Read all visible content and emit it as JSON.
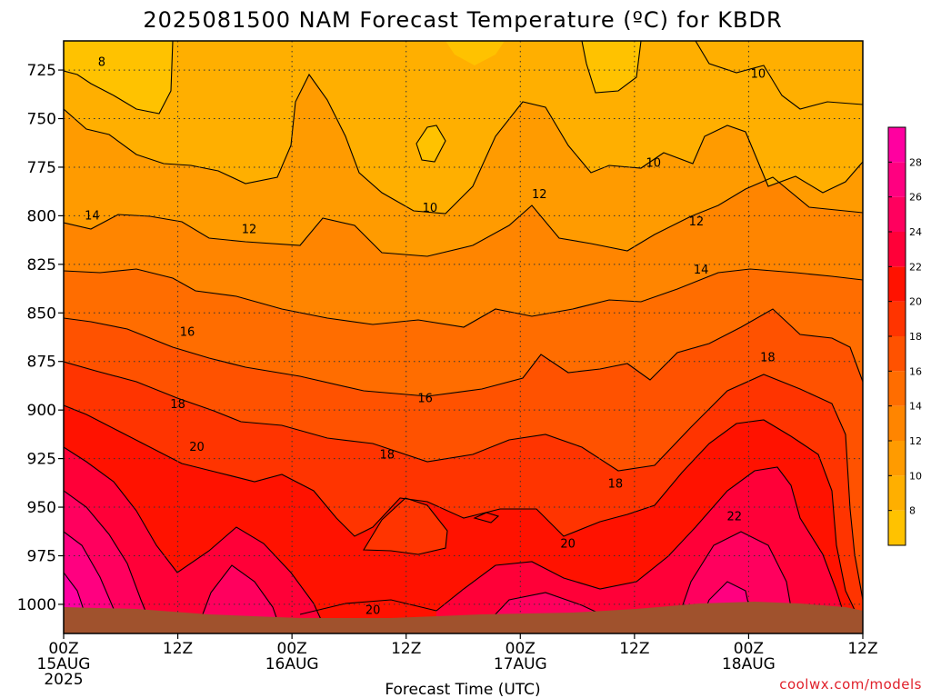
{
  "chart_data": {
    "type": "heatmap",
    "title": "2025081500 NAM Forecast Temperature (ºC) for KBDR",
    "xlabel": "Forecast Time (UTC)",
    "ylabel": "",
    "credit": "coolwx.com/models",
    "x_range_hours": [
      0,
      84
    ],
    "y_range_hPa": [
      1015,
      710
    ],
    "y_ticks": [
      725,
      750,
      775,
      800,
      825,
      850,
      875,
      900,
      925,
      950,
      975,
      1000
    ],
    "x_ticks": [
      {
        "hour": 0,
        "lines": [
          "00Z",
          "15AUG",
          "2025"
        ]
      },
      {
        "hour": 12,
        "lines": [
          "12Z"
        ]
      },
      {
        "hour": 24,
        "lines": [
          "00Z",
          "16AUG"
        ]
      },
      {
        "hour": 36,
        "lines": [
          "12Z"
        ]
      },
      {
        "hour": 48,
        "lines": [
          "00Z",
          "17AUG"
        ]
      },
      {
        "hour": 60,
        "lines": [
          "12Z"
        ]
      },
      {
        "hour": 72,
        "lines": [
          "00Z",
          "18AUG"
        ]
      },
      {
        "hour": 84,
        "lines": [
          "12Z"
        ]
      }
    ],
    "colorbar": {
      "min": 6,
      "max": 30,
      "step": 2,
      "labels": [
        8,
        10,
        12,
        14,
        16,
        18,
        20,
        22,
        24,
        26,
        28
      ],
      "colors": [
        "#ffc200",
        "#ffaf00",
        "#ff9b00",
        "#ff8500",
        "#ff6d00",
        "#ff5200",
        "#ff3400",
        "#ff1200",
        "#ff0038",
        "#ff005e",
        "#ff0080",
        "#ff00a0"
      ]
    },
    "ground_color": "#a0522d",
    "contour_labels": [
      {
        "value": 8,
        "hour": 4.0,
        "p": 721
      },
      {
        "value": 10,
        "hour": 73.0,
        "p": 727
      },
      {
        "value": 10,
        "hour": 62.0,
        "p": 773
      },
      {
        "value": 10,
        "hour": 38.5,
        "p": 796
      },
      {
        "value": 12,
        "hour": 50.0,
        "p": 789
      },
      {
        "value": 12,
        "hour": 19.5,
        "p": 807
      },
      {
        "value": 12,
        "hour": 66.5,
        "p": 803
      },
      {
        "value": 14,
        "hour": 3.0,
        "p": 800
      },
      {
        "value": 14,
        "hour": 67.0,
        "p": 828
      },
      {
        "value": 16,
        "hour": 13.0,
        "p": 860
      },
      {
        "value": 16,
        "hour": 38.0,
        "p": 894
      },
      {
        "value": 18,
        "hour": 12.0,
        "p": 897
      },
      {
        "value": 18,
        "hour": 34.0,
        "p": 923
      },
      {
        "value": 18,
        "hour": 58.0,
        "p": 938
      },
      {
        "value": 18,
        "hour": 74.0,
        "p": 873
      },
      {
        "value": 20,
        "hour": 14.0,
        "p": 919
      },
      {
        "value": 20,
        "hour": 53.0,
        "p": 969
      },
      {
        "value": 20,
        "hour": 32.5,
        "p": 1003
      },
      {
        "value": 22,
        "hour": 70.5,
        "p": 955
      }
    ]
  }
}
